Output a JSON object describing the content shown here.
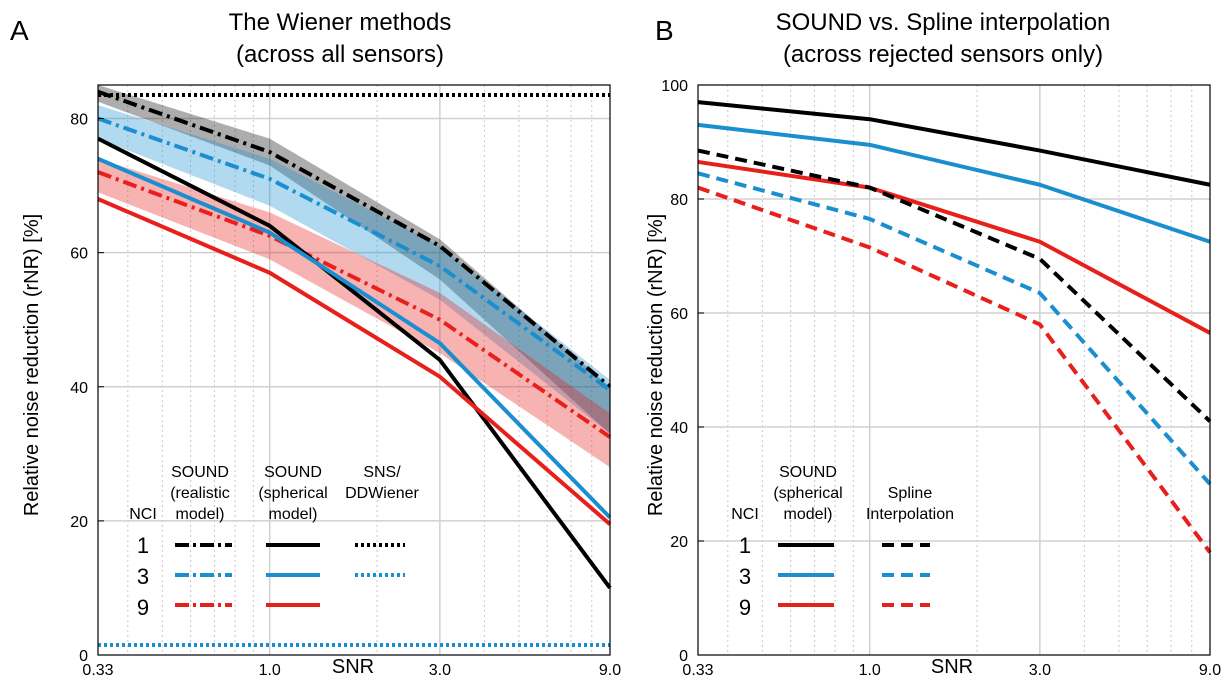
{
  "panels": {
    "a": {
      "letter": "A",
      "title_line1": "The Wiener methods",
      "title_line2": "(across all sensors)",
      "ylabel": "Relative noise reduction (rNR) [%]",
      "xlabel": "SNR",
      "legend": {
        "nci_header": "NCI",
        "col1_lines": [
          "SOUND",
          "(realistic",
          "model)"
        ],
        "col2_lines": [
          "SOUND",
          "(spherical",
          "model)"
        ],
        "col3_lines": [
          "SNS/",
          "DDWiener"
        ],
        "rows": [
          "1",
          "3",
          "9"
        ]
      }
    },
    "b": {
      "letter": "B",
      "title_line1": "SOUND vs. Spline interpolation",
      "title_line2": "(across rejected sensors only)",
      "ylabel": "Relative noise reduction (rNR) [%]",
      "xlabel": "SNR",
      "legend": {
        "nci_header": "NCI",
        "col1_lines": [
          "SOUND",
          "(spherical",
          "model)"
        ],
        "col2_lines": [
          "Spline",
          "Interpolation"
        ],
        "rows": [
          "1",
          "3",
          "9"
        ]
      }
    }
  },
  "colors": {
    "nci1": "#000000",
    "nci3": "#1a8fd0",
    "nci9": "#e8201c"
  },
  "chart_data": [
    {
      "type": "line",
      "title": "The Wiener methods (across all sensors)",
      "xlabel": "SNR",
      "ylabel": "Relative noise reduction (rNR) [%]",
      "x_scale": "log",
      "xlim": [
        0.33,
        9.0
      ],
      "ylim": [
        0,
        85
      ],
      "x": [
        0.33,
        1.0,
        3.0,
        9.0
      ],
      "xticks": [
        "0.33",
        "1.0",
        "3.0",
        "9.0"
      ],
      "yticks": [
        0,
        20,
        40,
        60,
        80
      ],
      "grid": true,
      "legend": "bottom-left",
      "series": [
        {
          "name": "SOUND (realistic model) NCI 1",
          "style": "dashdot",
          "color": "#000000",
          "values": [
            84,
            75,
            61,
            40
          ],
          "band": [
            [
              82.5,
              85
            ],
            [
              73,
              77
            ],
            [
              56,
              62
            ],
            [
              33,
              40
            ]
          ]
        },
        {
          "name": "SOUND (realistic model) NCI 3",
          "style": "dashdot",
          "color": "#1a8fd0",
          "values": [
            80,
            71,
            58,
            39.5
          ],
          "band": [
            [
              77,
              82
            ],
            [
              67,
              74
            ],
            [
              53,
              61
            ],
            [
              33,
              41
            ]
          ]
        },
        {
          "name": "SOUND (realistic model) NCI 9",
          "style": "dashdot",
          "color": "#e8201c",
          "values": [
            72,
            62.5,
            50,
            32.5
          ],
          "band": [
            [
              69,
              74
            ],
            [
              59,
              66
            ],
            [
              45,
              54
            ],
            [
              28,
              36
            ]
          ]
        },
        {
          "name": "SOUND (spherical model) NCI 1",
          "style": "solid",
          "color": "#000000",
          "values": [
            77,
            64,
            44,
            10
          ]
        },
        {
          "name": "SOUND (spherical model) NCI 3",
          "style": "solid",
          "color": "#1a8fd0",
          "values": [
            74,
            63,
            46.5,
            20.5
          ]
        },
        {
          "name": "SOUND (spherical model) NCI 9",
          "style": "solid",
          "color": "#e8201c",
          "values": [
            68,
            57,
            41.5,
            19.5
          ]
        },
        {
          "name": "SNS/DDWiener NCI 1",
          "style": "dotted",
          "color": "#000000",
          "values": [
            83.5,
            83.5,
            83.5,
            83.5
          ]
        },
        {
          "name": "SNS/DDWiener NCI 3",
          "style": "dotted",
          "color": "#1a8fd0",
          "values": [
            1.5,
            1.5,
            1.5,
            1.5
          ]
        }
      ]
    },
    {
      "type": "line",
      "title": "SOUND vs. Spline interpolation (across rejected sensors only)",
      "xlabel": "SNR",
      "ylabel": "Relative noise reduction (rNR) [%]",
      "x_scale": "log",
      "xlim": [
        0.33,
        9.0
      ],
      "ylim": [
        0,
        100
      ],
      "x": [
        0.33,
        1.0,
        3.0,
        9.0
      ],
      "xticks": [
        "0.33",
        "1.0",
        "3.0",
        "9.0"
      ],
      "yticks": [
        0,
        20,
        40,
        60,
        80,
        100
      ],
      "grid": true,
      "legend": "bottom-left",
      "series": [
        {
          "name": "SOUND (spherical model) NCI 1",
          "style": "solid",
          "color": "#000000",
          "values": [
            97,
            94,
            88.5,
            82.5
          ]
        },
        {
          "name": "SOUND (spherical model) NCI 3",
          "style": "solid",
          "color": "#1a8fd0",
          "values": [
            93,
            89.5,
            82.5,
            72.5
          ]
        },
        {
          "name": "SOUND (spherical model) NCI 9",
          "style": "solid",
          "color": "#e8201c",
          "values": [
            86.5,
            82,
            72.5,
            56.5
          ]
        },
        {
          "name": "Spline Interpolation NCI 1",
          "style": "dashed",
          "color": "#000000",
          "values": [
            88.5,
            82,
            69.5,
            41
          ]
        },
        {
          "name": "Spline Interpolation NCI 3",
          "style": "dashed",
          "color": "#1a8fd0",
          "values": [
            84.5,
            76.5,
            63.5,
            30
          ]
        },
        {
          "name": "Spline Interpolation NCI 9",
          "style": "dashed",
          "color": "#e8201c",
          "values": [
            82,
            71.5,
            58,
            18
          ]
        }
      ]
    }
  ]
}
